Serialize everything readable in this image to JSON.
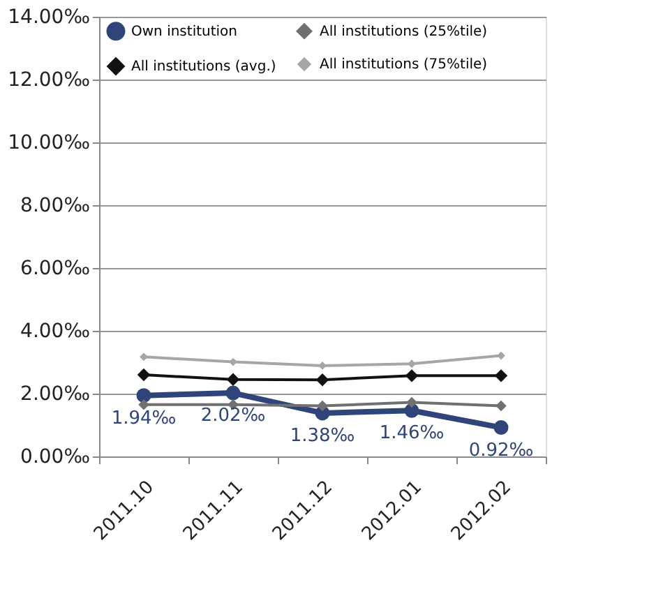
{
  "chart_data": {
    "type": "line",
    "categories": [
      "2011.10",
      "2011.11",
      "2011.12",
      "2012.01",
      "2012.02"
    ],
    "series": [
      {
        "name": "Own institution",
        "color": "#2f4478",
        "marker": "circle",
        "values": [
          1.94,
          2.02,
          1.38,
          1.46,
          0.92
        ],
        "value_labels": [
          "1.94‰",
          "2.02‰",
          "1.38‰",
          "1.46‰",
          "0.92‰"
        ]
      },
      {
        "name": "All institutions (avg.)",
        "color": "#111111",
        "marker": "diamond",
        "values": [
          2.6,
          2.45,
          2.44,
          2.57,
          2.57
        ]
      },
      {
        "name": "All institutions (25%tile)",
        "color": "#707070",
        "marker": "diamond",
        "values": [
          1.65,
          1.65,
          1.61,
          1.72,
          1.61
        ]
      },
      {
        "name": "All institutions (75%tile)",
        "color": "#a6a6a6",
        "marker": "diamond",
        "values": [
          3.17,
          3.01,
          2.89,
          2.95,
          3.21
        ]
      }
    ],
    "ylim": [
      0,
      14
    ],
    "yticks": [
      {
        "value": 0,
        "label": "0.00‰"
      },
      {
        "value": 2,
        "label": "2.00‰"
      },
      {
        "value": 4,
        "label": "4.00‰"
      },
      {
        "value": 6,
        "label": "6.00‰"
      },
      {
        "value": 8,
        "label": "8.00‰"
      },
      {
        "value": 10,
        "label": "10.00‰"
      },
      {
        "value": 12,
        "label": "12.00‰"
      },
      {
        "value": 14,
        "label": "14.00‰"
      }
    ],
    "grid": "y",
    "legend": "top"
  }
}
